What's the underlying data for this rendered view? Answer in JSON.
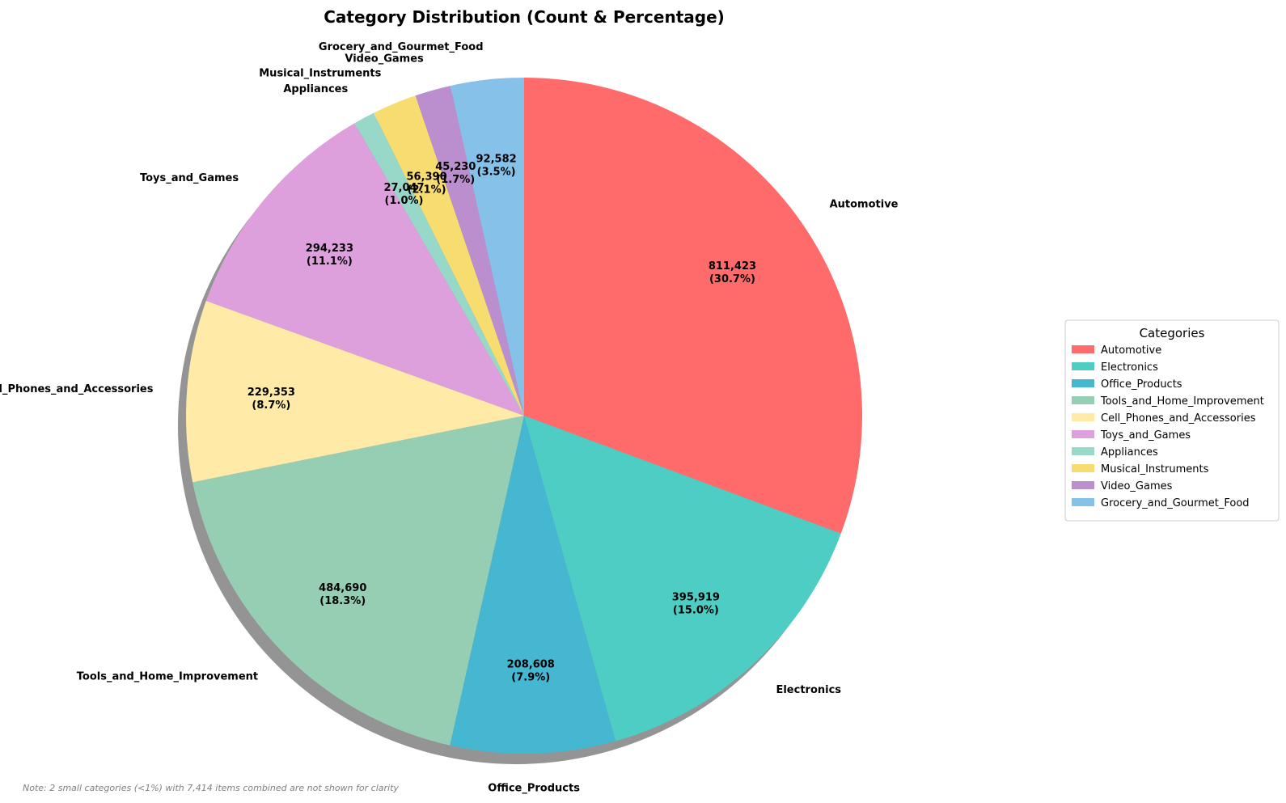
{
  "chart_data": {
    "type": "pie",
    "title": "Category Distribution (Count & Percentage)",
    "start_angle_deg": 90,
    "direction": "clockwise",
    "shadow": true,
    "slices": [
      {
        "label": "Automotive",
        "value": 811423,
        "value_text": "811,423",
        "pct_text": "(30.7%)",
        "color": "#FF6B6B"
      },
      {
        "label": "Electronics",
        "value": 395919,
        "value_text": "395,919",
        "pct_text": "(15.0%)",
        "color": "#4ECDC4"
      },
      {
        "label": "Office_Products",
        "value": 208608,
        "value_text": "208,608",
        "pct_text": "(7.9%)",
        "color": "#45B7D1"
      },
      {
        "label": "Tools_and_Home_Improvement",
        "value": 484690,
        "value_text": "484,690",
        "pct_text": "(18.3%)",
        "color": "#96CEB4"
      },
      {
        "label": "Cell_Phones_and_Accessories",
        "value": 229353,
        "value_text": "229,353",
        "pct_text": "(8.7%)",
        "color": "#FFEAA7"
      },
      {
        "label": "Toys_and_Games",
        "value": 294233,
        "value_text": "294,233",
        "pct_text": "(11.1%)",
        "color": "#DDA0DD"
      },
      {
        "label": "Appliances",
        "value": 27047,
        "value_text": "27,047",
        "pct_text": "(1.0%)",
        "color": "#98D8C8"
      },
      {
        "label": "Musical_Instruments",
        "value": 56390,
        "value_text": "56,390",
        "pct_text": "(2.1%)",
        "color": "#F7DC6F"
      },
      {
        "label": "Video_Games",
        "value": 45230,
        "value_text": "45,230",
        "pct_text": "(1.7%)",
        "color": "#BB8FCE"
      },
      {
        "label": "Grocery_and_Gourmet_Food",
        "value": 92582,
        "value_text": "92,582",
        "pct_text": "(3.5%)",
        "color": "#85C1E9"
      }
    ],
    "legend": {
      "title": "Categories",
      "placement": "center-right"
    },
    "note": "Note: 2 small categories (<1%) with 7,414 items combined are not shown for clarity"
  }
}
